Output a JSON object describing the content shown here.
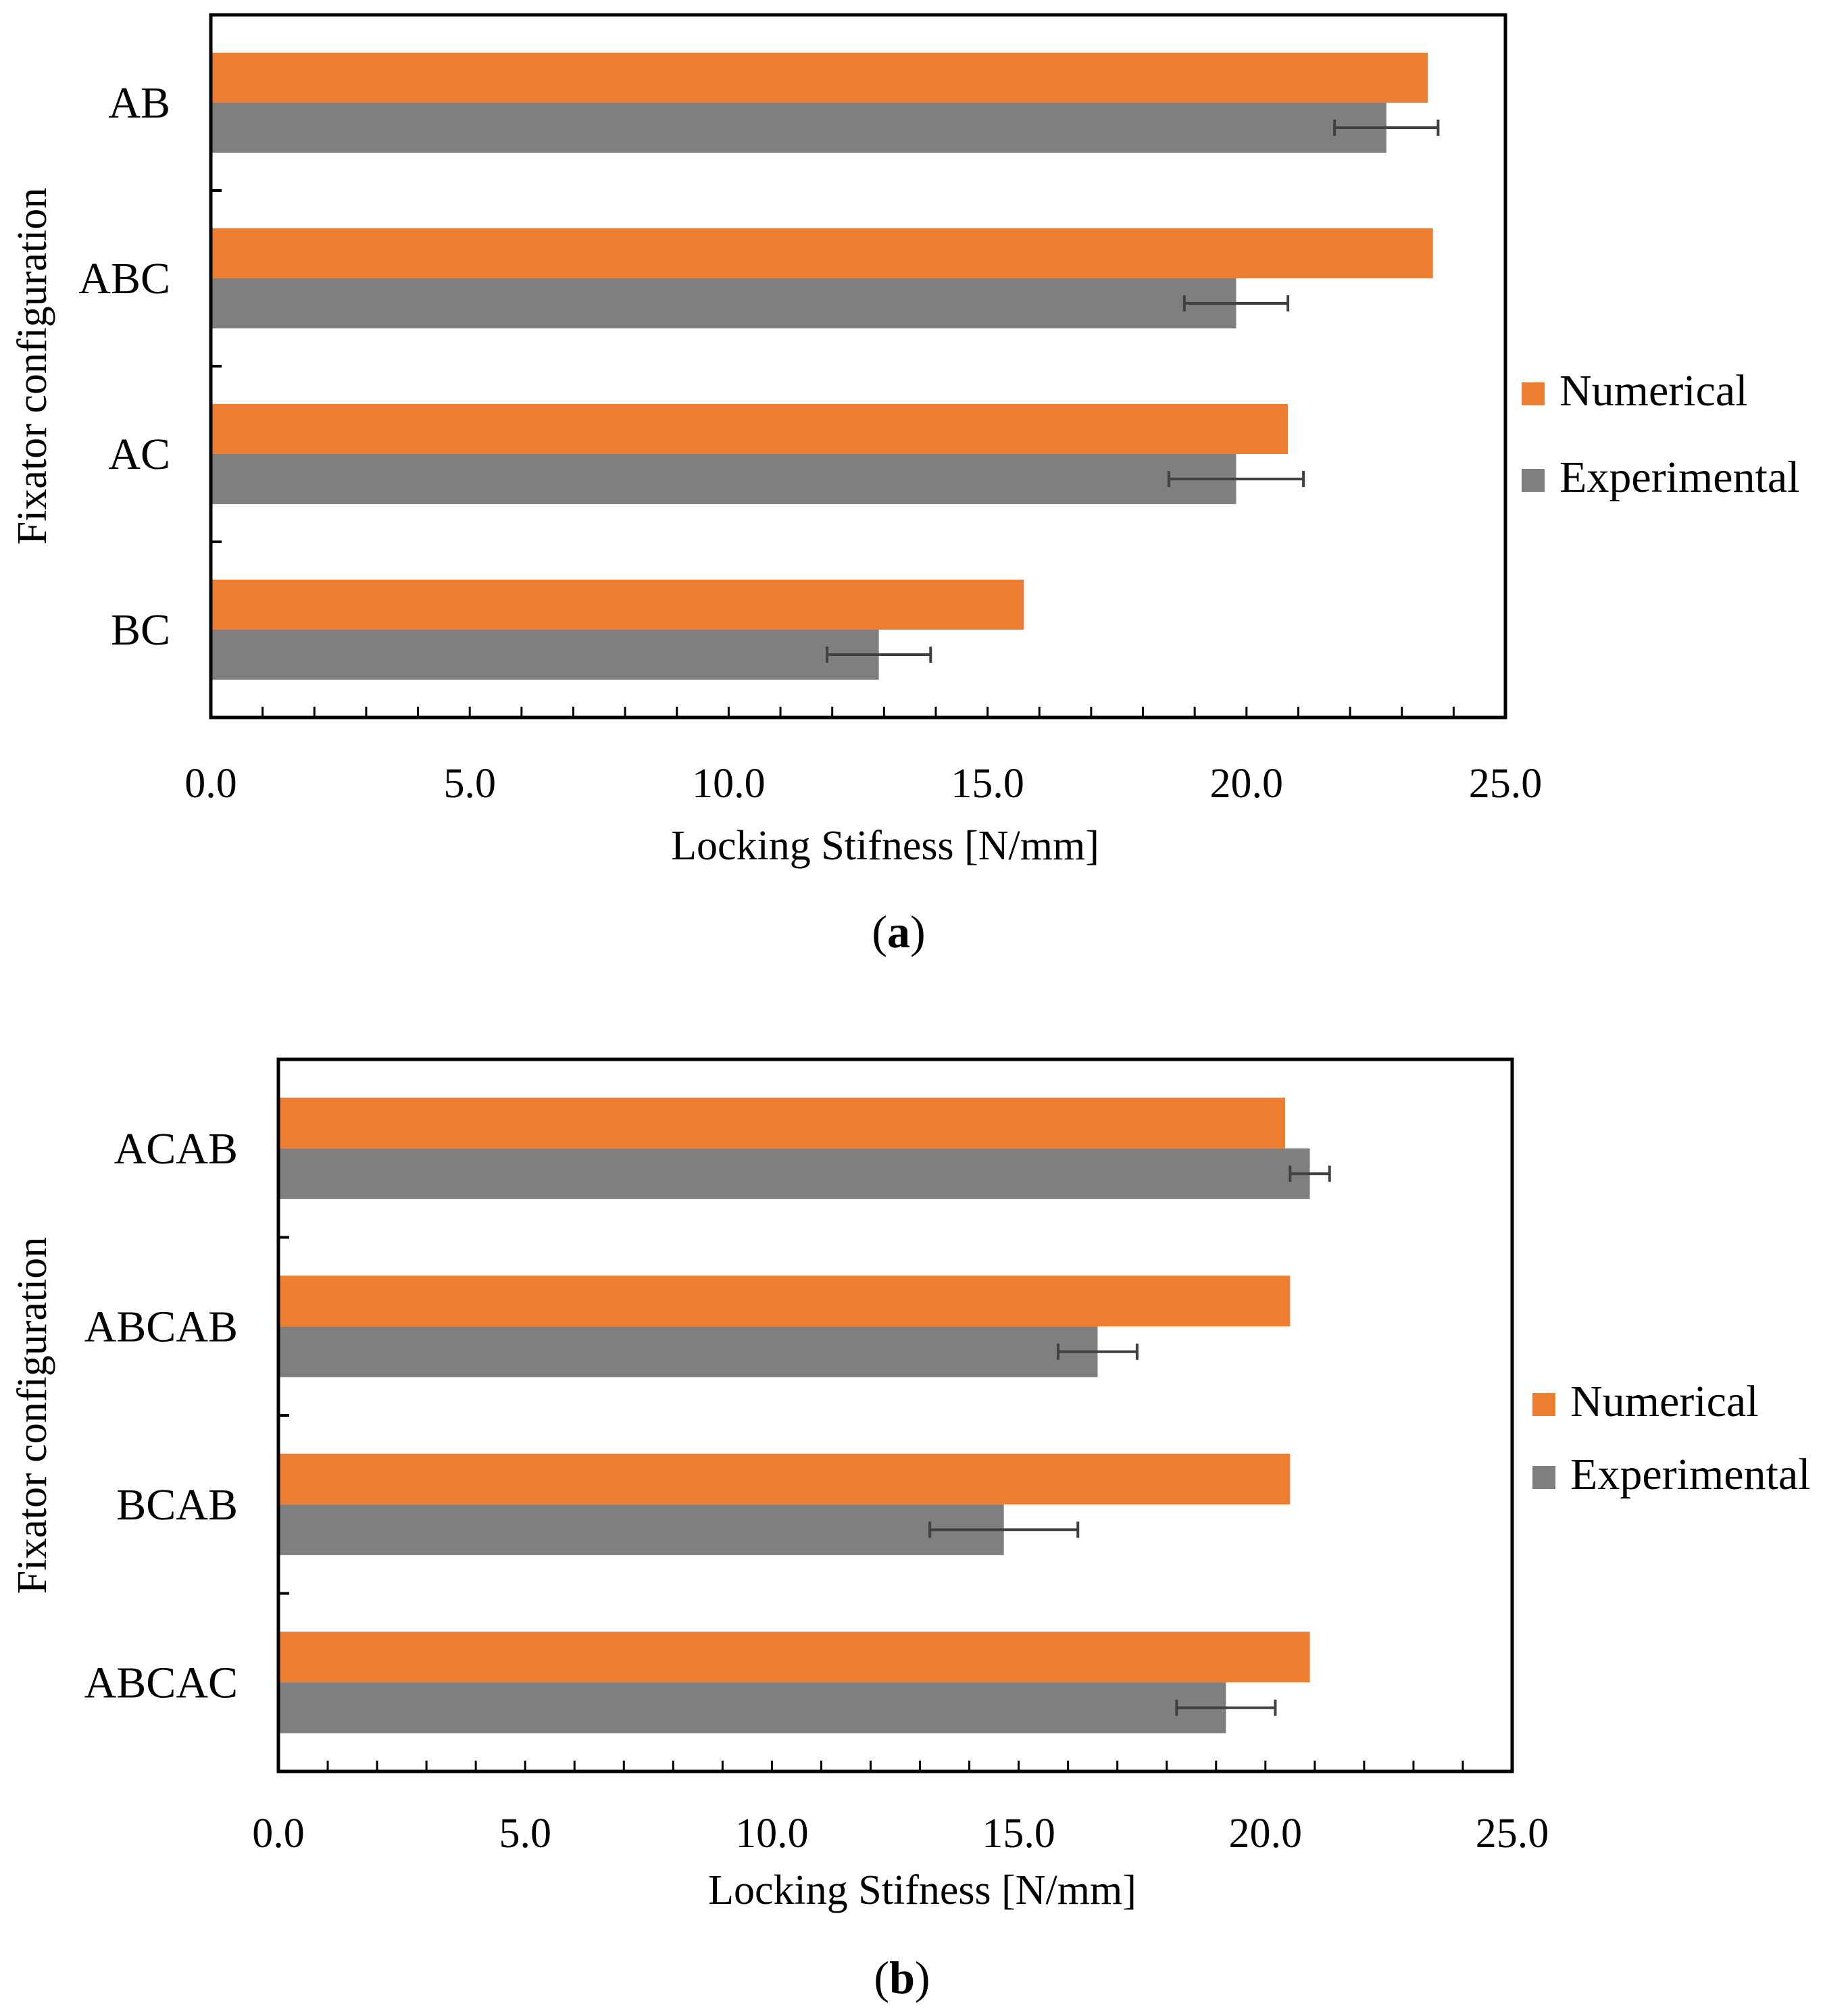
{
  "chart_data": [
    {
      "type": "bar",
      "orientation": "horizontal",
      "panel": "a",
      "caption_letter": "a",
      "categories": [
        "AB",
        "ABC",
        "AC",
        "BC"
      ],
      "series": [
        {
          "name": "Numerical",
          "color": "#ED7D31",
          "values": [
            23.5,
            23.6,
            20.8,
            15.7
          ]
        },
        {
          "name": "Experimental",
          "color": "#7F7F7F",
          "values": [
            22.7,
            19.8,
            19.8,
            12.9
          ],
          "error": [
            1.0,
            1.0,
            1.3,
            1.0
          ]
        }
      ],
      "xlabel": "Locking Stifness  [N/mm]",
      "ylabel": "Fixator configuration",
      "xlim": [
        0,
        25
      ],
      "xticks": [
        "0.0",
        "5.0",
        "10.0",
        "15.0",
        "20.0",
        "25.0"
      ],
      "legend": "right"
    },
    {
      "type": "bar",
      "orientation": "horizontal",
      "panel": "b",
      "caption_letter": "b",
      "categories": [
        "ACAB",
        "ABCAB",
        "BCAB",
        "ABCAC"
      ],
      "series": [
        {
          "name": "Numerical",
          "color": "#ED7D31",
          "values": [
            20.4,
            20.5,
            20.5,
            20.9
          ]
        },
        {
          "name": "Experimental",
          "color": "#7F7F7F",
          "values": [
            20.9,
            16.6,
            14.7,
            19.2
          ],
          "error": [
            0.4,
            0.8,
            1.5,
            1.0
          ]
        }
      ],
      "xlabel": "Locking Stifness  [N/mm]",
      "ylabel": "Fixator configuration",
      "xlim": [
        0,
        25
      ],
      "xticks": [
        "0.0",
        "5.0",
        "10.0",
        "15.0",
        "20.0",
        "25.0"
      ],
      "legend": "right"
    }
  ]
}
